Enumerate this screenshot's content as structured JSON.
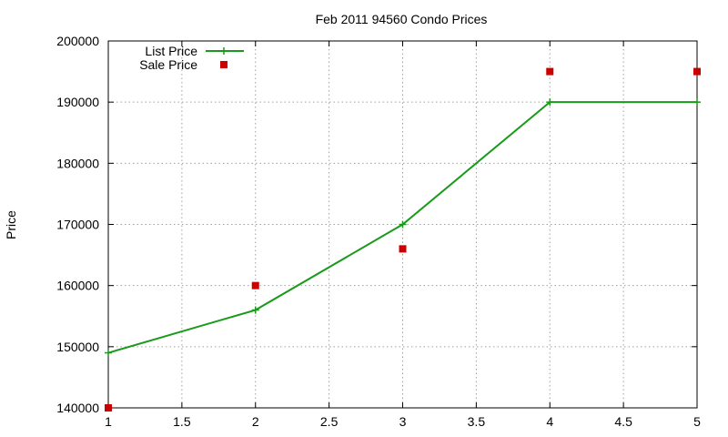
{
  "chart_data": {
    "type": "line",
    "title": "Feb 2011 94560 Condo Prices",
    "xlabel": "",
    "ylabel": "Price",
    "xlim": [
      1,
      5
    ],
    "ylim": [
      140000,
      200000
    ],
    "x_ticks": [
      "1",
      "1.5",
      "2",
      "2.5",
      "3",
      "3.5",
      "4",
      "4.5",
      "5"
    ],
    "y_ticks": [
      "140000",
      "150000",
      "160000",
      "170000",
      "180000",
      "190000",
      "200000"
    ],
    "grid": true,
    "legend_position": "top-left",
    "series": [
      {
        "name": "List Price",
        "style": "linespoints",
        "marker": "plus",
        "color": "#1a9a1a",
        "points": [
          {
            "x": 1,
            "y": 149000
          },
          {
            "x": 2,
            "y": 156000
          },
          {
            "x": 3,
            "y": 170000
          },
          {
            "x": 4,
            "y": 190000
          },
          {
            "x": 5,
            "y": 190000
          }
        ]
      },
      {
        "name": "Sale Price",
        "style": "points",
        "marker": "square",
        "color": "#cc0000",
        "points": [
          {
            "x": 1,
            "y": 140000
          },
          {
            "x": 2,
            "y": 160000
          },
          {
            "x": 3,
            "y": 166000
          },
          {
            "x": 4,
            "y": 195000
          },
          {
            "x": 5,
            "y": 195000
          }
        ]
      }
    ]
  }
}
